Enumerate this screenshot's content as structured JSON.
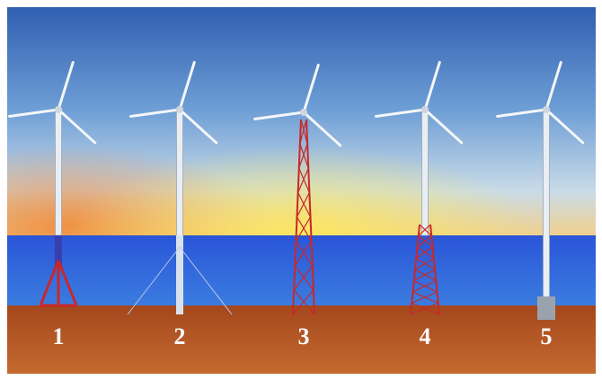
{
  "nodes": [
    {
      "label": "1"
    },
    {
      "label": "2"
    },
    {
      "label": "3"
    },
    {
      "label": "4"
    },
    {
      "label": "5"
    }
  ]
}
